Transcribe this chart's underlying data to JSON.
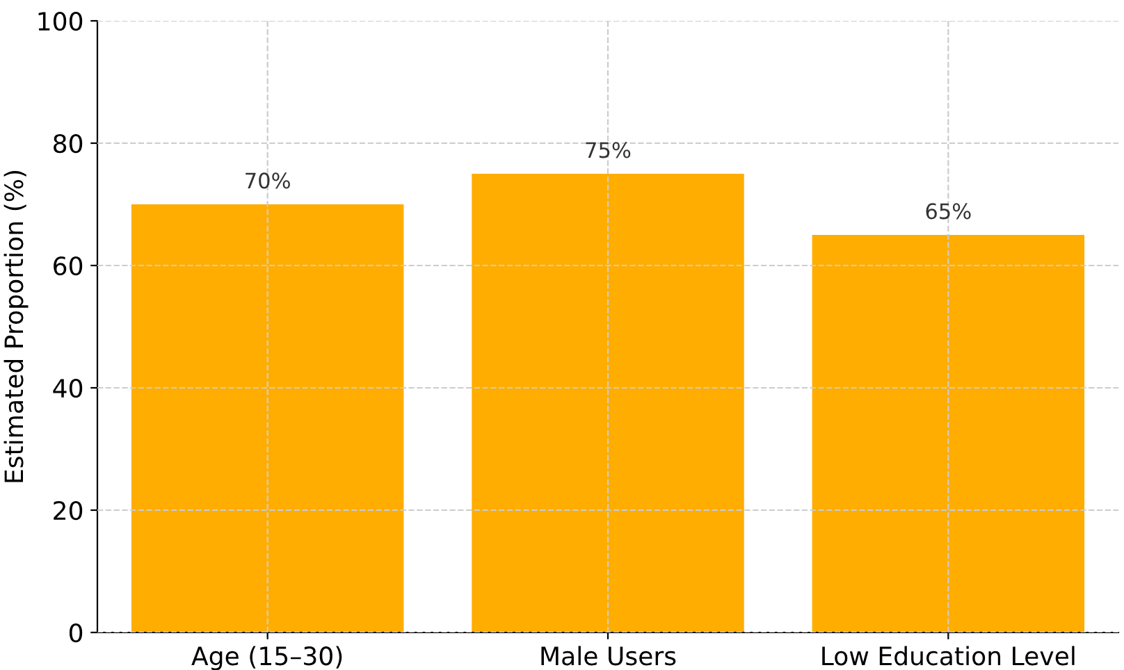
{
  "chart_data": {
    "type": "bar",
    "ylabel": "Estimated Proportion (%)",
    "categories": [
      "Age (15–30)",
      "Male Users",
      "Low Education Level"
    ],
    "values": [
      70,
      75,
      65
    ],
    "color": "#ffad00",
    "value_labels": [
      "70%",
      "75%",
      "65%"
    ],
    "ylim": [
      0,
      100
    ],
    "yticks": [
      0,
      20,
      40,
      60,
      80,
      100
    ],
    "grid": true
  }
}
